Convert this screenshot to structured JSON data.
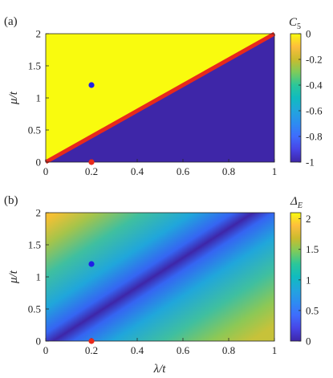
{
  "chart_data": [
    {
      "type": "heatmap",
      "panel_label": "(a)",
      "xlim": [
        0,
        1
      ],
      "ylim": [
        0,
        2
      ],
      "x_ticks": [
        "0",
        "0.2",
        "0.4",
        "0.6",
        "0.8",
        "1"
      ],
      "y_ticks": [
        "0",
        "0.5",
        "1",
        "1.5",
        "2"
      ],
      "xlabel": "",
      "ylabel": "μ/t",
      "colorbar": {
        "label": "C",
        "label_sub": "5",
        "range": [
          -1,
          0
        ],
        "ticks": [
          "0",
          "-0.2",
          "-0.4",
          "-0.6",
          "-0.8",
          "-1"
        ]
      },
      "regions": [
        {
          "condition": "μ > 2λ",
          "value": 0,
          "color": "#f9fb0e"
        },
        {
          "condition": "μ < 2λ",
          "value": -1,
          "color": "#3e26a8"
        }
      ],
      "boundary_line": {
        "from": [
          0,
          0
        ],
        "to": [
          1,
          2
        ],
        "color": "#e8291c"
      },
      "points": [
        {
          "x": 0.2,
          "y": 1.2,
          "color": "#1f1fe6"
        },
        {
          "x": 0.2,
          "y": 0.0,
          "color": "#e8291c"
        }
      ]
    },
    {
      "type": "heatmap",
      "panel_label": "(b)",
      "xlim": [
        0,
        1
      ],
      "ylim": [
        0,
        2
      ],
      "x_ticks": [
        "0",
        "0.2",
        "0.4",
        "0.6",
        "0.8",
        "1"
      ],
      "y_ticks": [
        "0",
        "0.5",
        "1",
        "1.5",
        "2"
      ],
      "xlabel": "λ/t",
      "ylabel": "μ/t",
      "colorbar": {
        "label": "Δ",
        "label_sub": "E",
        "range": [
          0,
          2.1
        ],
        "ticks": [
          "2",
          "1.5",
          "1",
          "0.5",
          "0"
        ]
      },
      "field": "Δ_E ≈ |μ − 2λ|, minimum along μ = 2λ",
      "points": [
        {
          "x": 0.2,
          "y": 1.2,
          "color": "#1f1fe6"
        },
        {
          "x": 0.2,
          "y": 0.0,
          "color": "#e8291c"
        }
      ]
    }
  ]
}
